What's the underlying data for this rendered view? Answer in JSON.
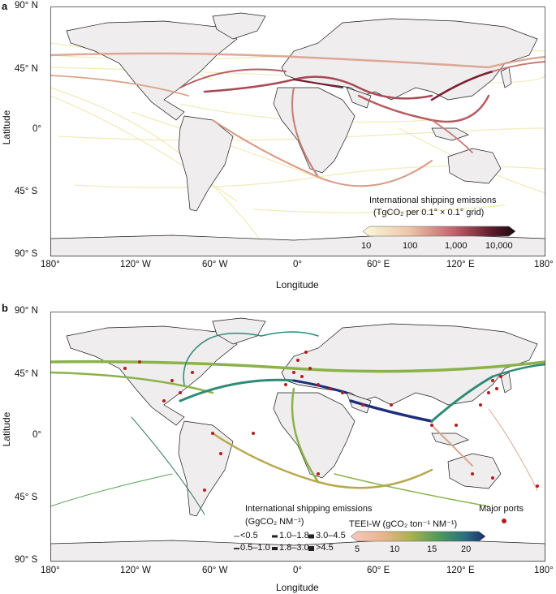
{
  "panel_a": {
    "letter": "a",
    "lat_ticks": [
      "90° N",
      "45° N",
      "0°",
      "45° S",
      "90° S"
    ],
    "lon_ticks": [
      "180°",
      "120° W",
      "60° W",
      "0°",
      "60° E",
      "120° E",
      "180°"
    ],
    "xlabel": "Longitude",
    "ylabel": "Latitude",
    "legend_title_1": "International shipping emissions",
    "legend_title_2": "(TgCO₂ per 0.1° × 0.1° grid)",
    "legend_ticks": [
      "10",
      "100",
      "1,000",
      "10,000"
    ]
  },
  "panel_b": {
    "letter": "b",
    "lat_ticks": [
      "90° N",
      "45° N",
      "0°",
      "45° S",
      "90° S"
    ],
    "lon_ticks": [
      "180°",
      "120° W",
      "60° W",
      "0°",
      "60° E",
      "120° E",
      "180°"
    ],
    "xlabel": "Longitude",
    "ylabel": "Latitude",
    "emis_title_1": "International shipping emissions",
    "emis_title_2": "(GgCO₂ NM⁻¹)",
    "emis_classes": [
      "<0.5",
      "1.0–1.8",
      "3.0–4.5",
      "0.5–1.0",
      "1.8–3.0",
      ">4.5"
    ],
    "teei_title": "TEEI-W (gCO₂ ton⁻¹ NM⁻¹)",
    "teei_ticks": [
      "5",
      "10",
      "15",
      "20"
    ],
    "ports_label": "Major ports"
  },
  "colors": {
    "land": "#efeded",
    "ocean": "#ffffff",
    "border": "#1a1a1a",
    "emission_low": "#f3efb8",
    "emission_mid": "#d89a86",
    "emission_high": "#7a1f33",
    "route_green": "#8bb24a",
    "route_teal": "#2f8a77",
    "route_navy": "#1d2f7a",
    "port": "#b71c1c"
  }
}
